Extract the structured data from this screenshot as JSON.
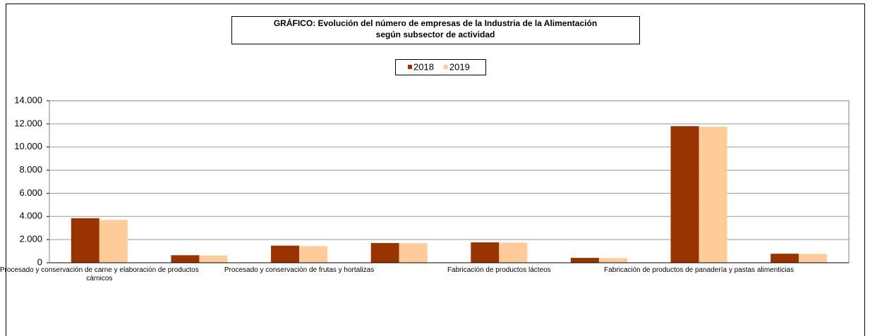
{
  "chart_data": {
    "type": "bar",
    "title": [
      "GRÁFICO: Evolución del número de empresas de la Industria de la Alimentación",
      "según subsector de actividad"
    ],
    "categories": [
      "Procesado y conservación de carne y elaboración de productos cárnicos",
      null,
      "Procesado y conservación de frutas y hortalizas",
      null,
      "Fabricación de productos lácteos",
      null,
      "Fabricación de productos de panadería y pastas alimenticias",
      null
    ],
    "series": [
      {
        "name": "2018",
        "color": "#993300",
        "values": [
          3850,
          650,
          1480,
          1700,
          1760,
          420,
          11800,
          780
        ]
      },
      {
        "name": "2019",
        "color": "#FFCC99",
        "values": [
          3700,
          620,
          1430,
          1690,
          1740,
          400,
          11750,
          760
        ]
      }
    ],
    "ylim": [
      0,
      14000
    ],
    "yticks": [
      0,
      {
        "value": 2000,
        "label": "2.000"
      },
      {
        "value": 4000,
        "label": "4.000"
      },
      {
        "value": 6000,
        "label": "6.000"
      },
      {
        "value": 8000,
        "label": "8.000"
      },
      {
        "value": 10000,
        "label": "10.000"
      },
      {
        "value": 12000,
        "label": "12.000"
      },
      {
        "value": 14000,
        "label": "14.000"
      }
    ],
    "grid": true
  }
}
